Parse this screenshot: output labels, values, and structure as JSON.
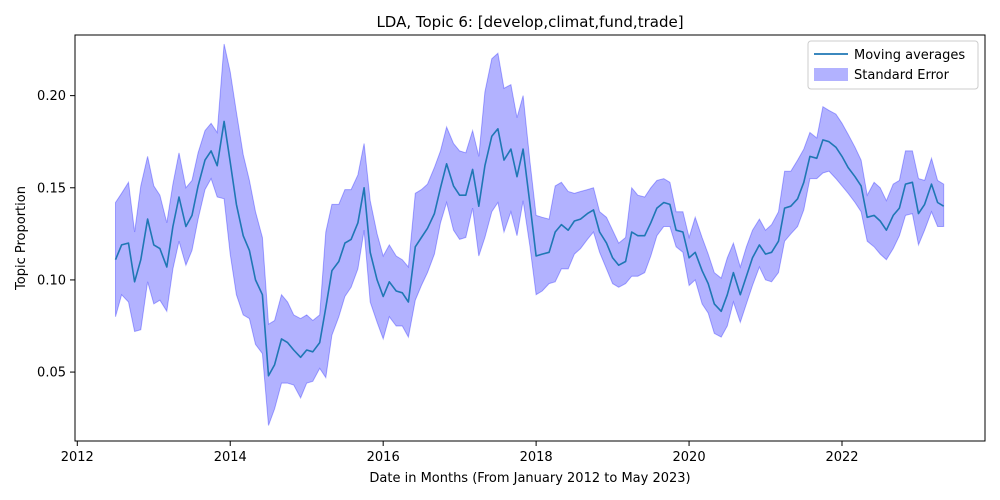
{
  "chart_data": {
    "type": "line",
    "title": "LDA, Topic 6: [develop,climat,fund,trade]",
    "xlabel": "Date in Months (From January 2012 to May 2023)",
    "ylabel": "Topic Proportion",
    "xlim": [
      2011.97,
      2023.87
    ],
    "ylim": [
      0.0126,
      0.2329
    ],
    "x_ticks": [
      2012,
      2014,
      2016,
      2018,
      2020,
      2022
    ],
    "y_ticks": [
      0.05,
      0.1,
      0.15,
      0.2
    ],
    "y_tick_labels": [
      "0.05",
      "0.10",
      "0.15",
      "0.20"
    ],
    "grid": false,
    "legend_position": "top-right",
    "colors": {
      "line": "#1f77b4",
      "band": "#0000ff"
    },
    "series": [
      {
        "name": "Moving averages",
        "kind": "line",
        "x": [
          2012.5,
          2012.58,
          2012.67,
          2012.75,
          2012.83,
          2012.92,
          2013.0,
          2013.08,
          2013.17,
          2013.25,
          2013.33,
          2013.42,
          2013.5,
          2013.58,
          2013.67,
          2013.75,
          2013.83,
          2013.92,
          2014.0,
          2014.08,
          2014.17,
          2014.25,
          2014.33,
          2014.42,
          2014.5,
          2014.58,
          2014.67,
          2014.75,
          2014.83,
          2014.92,
          2015.0,
          2015.08,
          2015.17,
          2015.25,
          2015.33,
          2015.42,
          2015.5,
          2015.58,
          2015.67,
          2015.75,
          2015.83,
          2015.92,
          2016.0,
          2016.08,
          2016.17,
          2016.25,
          2016.33,
          2016.42,
          2016.5,
          2016.58,
          2016.67,
          2016.75,
          2016.83,
          2016.92,
          2017.0,
          2017.08,
          2017.17,
          2017.25,
          2017.33,
          2017.42,
          2017.5,
          2017.58,
          2017.67,
          2017.75,
          2017.83,
          2017.92,
          2018.0,
          2018.08,
          2018.17,
          2018.25,
          2018.33,
          2018.42,
          2018.5,
          2018.58,
          2018.67,
          2018.75,
          2018.83,
          2018.92,
          2019.0,
          2019.08,
          2019.17,
          2019.25,
          2019.33,
          2019.42,
          2019.5,
          2019.58,
          2019.67,
          2019.75,
          2019.83,
          2019.92,
          2020.0,
          2020.08,
          2020.17,
          2020.25,
          2020.33,
          2020.42,
          2020.5,
          2020.58,
          2020.67,
          2020.75,
          2020.83,
          2020.92,
          2021.0,
          2021.08,
          2021.17,
          2021.25,
          2021.33,
          2021.42,
          2021.5,
          2021.58,
          2021.67,
          2021.75,
          2021.83,
          2021.92,
          2022.0,
          2022.08,
          2022.17,
          2022.25,
          2022.33,
          2022.42,
          2022.5,
          2022.58,
          2022.67,
          2022.75,
          2022.83,
          2022.92,
          2023.0,
          2023.08,
          2023.17,
          2023.25,
          2023.33
        ],
        "y": [
          0.111,
          0.119,
          0.12,
          0.099,
          0.111,
          0.133,
          0.119,
          0.117,
          0.107,
          0.129,
          0.145,
          0.129,
          0.135,
          0.151,
          0.165,
          0.17,
          0.162,
          0.186,
          0.164,
          0.141,
          0.124,
          0.116,
          0.1,
          0.092,
          0.048,
          0.054,
          0.068,
          0.066,
          0.062,
          0.058,
          0.062,
          0.061,
          0.066,
          0.085,
          0.105,
          0.11,
          0.12,
          0.122,
          0.131,
          0.15,
          0.115,
          0.1,
          0.091,
          0.099,
          0.094,
          0.093,
          0.088,
          0.118,
          0.123,
          0.128,
          0.136,
          0.15,
          0.163,
          0.151,
          0.146,
          0.146,
          0.16,
          0.14,
          0.162,
          0.178,
          0.182,
          0.165,
          0.171,
          0.156,
          0.171,
          0.141,
          0.113,
          0.114,
          0.115,
          0.126,
          0.13,
          0.127,
          0.132,
          0.133,
          0.136,
          0.138,
          0.126,
          0.12,
          0.112,
          0.108,
          0.11,
          0.126,
          0.124,
          0.124,
          0.131,
          0.139,
          0.142,
          0.141,
          0.127,
          0.126,
          0.112,
          0.115,
          0.105,
          0.098,
          0.087,
          0.083,
          0.092,
          0.104,
          0.092,
          0.102,
          0.112,
          0.119,
          0.114,
          0.115,
          0.121,
          0.139,
          0.14,
          0.144,
          0.153,
          0.167,
          0.166,
          0.176,
          0.175,
          0.172,
          0.167,
          0.161,
          0.156,
          0.151,
          0.134,
          0.135,
          0.132,
          0.127,
          0.135,
          0.139,
          0.152,
          0.153,
          0.136,
          0.141,
          0.152,
          0.142,
          0.14
        ]
      },
      {
        "name": "Standard Error",
        "kind": "band",
        "x_ref": "Moving averages",
        "upper": [
          0.142,
          0.147,
          0.153,
          0.126,
          0.151,
          0.167,
          0.151,
          0.146,
          0.131,
          0.152,
          0.169,
          0.15,
          0.154,
          0.169,
          0.181,
          0.185,
          0.18,
          0.228,
          0.213,
          0.191,
          0.168,
          0.154,
          0.137,
          0.123,
          0.076,
          0.078,
          0.092,
          0.088,
          0.081,
          0.079,
          0.081,
          0.078,
          0.081,
          0.126,
          0.141,
          0.141,
          0.149,
          0.149,
          0.157,
          0.174,
          0.143,
          0.125,
          0.113,
          0.119,
          0.113,
          0.111,
          0.107,
          0.147,
          0.149,
          0.152,
          0.161,
          0.17,
          0.183,
          0.174,
          0.17,
          0.169,
          0.181,
          0.167,
          0.202,
          0.22,
          0.223,
          0.204,
          0.206,
          0.188,
          0.2,
          0.164,
          0.135,
          0.134,
          0.133,
          0.151,
          0.153,
          0.148,
          0.147,
          0.148,
          0.149,
          0.15,
          0.137,
          0.134,
          0.127,
          0.12,
          0.123,
          0.15,
          0.146,
          0.145,
          0.15,
          0.154,
          0.155,
          0.153,
          0.137,
          0.137,
          0.123,
          0.134,
          0.123,
          0.114,
          0.104,
          0.101,
          0.112,
          0.12,
          0.107,
          0.118,
          0.127,
          0.133,
          0.127,
          0.13,
          0.137,
          0.159,
          0.159,
          0.165,
          0.171,
          0.18,
          0.177,
          0.194,
          0.192,
          0.19,
          0.185,
          0.179,
          0.172,
          0.165,
          0.146,
          0.153,
          0.15,
          0.143,
          0.152,
          0.154,
          0.17,
          0.17,
          0.155,
          0.154,
          0.166,
          0.154,
          0.152
        ],
        "lower": [
          0.08,
          0.092,
          0.088,
          0.072,
          0.073,
          0.099,
          0.087,
          0.089,
          0.083,
          0.106,
          0.121,
          0.108,
          0.116,
          0.133,
          0.149,
          0.155,
          0.145,
          0.144,
          0.114,
          0.092,
          0.081,
          0.079,
          0.065,
          0.06,
          0.021,
          0.03,
          0.044,
          0.044,
          0.043,
          0.036,
          0.044,
          0.045,
          0.052,
          0.047,
          0.07,
          0.08,
          0.091,
          0.096,
          0.106,
          0.127,
          0.088,
          0.077,
          0.068,
          0.08,
          0.075,
          0.075,
          0.069,
          0.089,
          0.097,
          0.104,
          0.114,
          0.131,
          0.142,
          0.127,
          0.122,
          0.123,
          0.139,
          0.113,
          0.123,
          0.137,
          0.142,
          0.126,
          0.137,
          0.124,
          0.143,
          0.118,
          0.092,
          0.094,
          0.098,
          0.099,
          0.106,
          0.106,
          0.114,
          0.117,
          0.122,
          0.126,
          0.115,
          0.106,
          0.098,
          0.096,
          0.098,
          0.102,
          0.102,
          0.104,
          0.113,
          0.124,
          0.129,
          0.129,
          0.118,
          0.115,
          0.097,
          0.1,
          0.087,
          0.082,
          0.071,
          0.069,
          0.075,
          0.088,
          0.077,
          0.087,
          0.097,
          0.107,
          0.1,
          0.099,
          0.104,
          0.121,
          0.125,
          0.129,
          0.138,
          0.155,
          0.155,
          0.158,
          0.159,
          0.155,
          0.151,
          0.147,
          0.142,
          0.137,
          0.121,
          0.118,
          0.114,
          0.111,
          0.117,
          0.124,
          0.135,
          0.136,
          0.119,
          0.127,
          0.137,
          0.129,
          0.129
        ]
      }
    ]
  }
}
